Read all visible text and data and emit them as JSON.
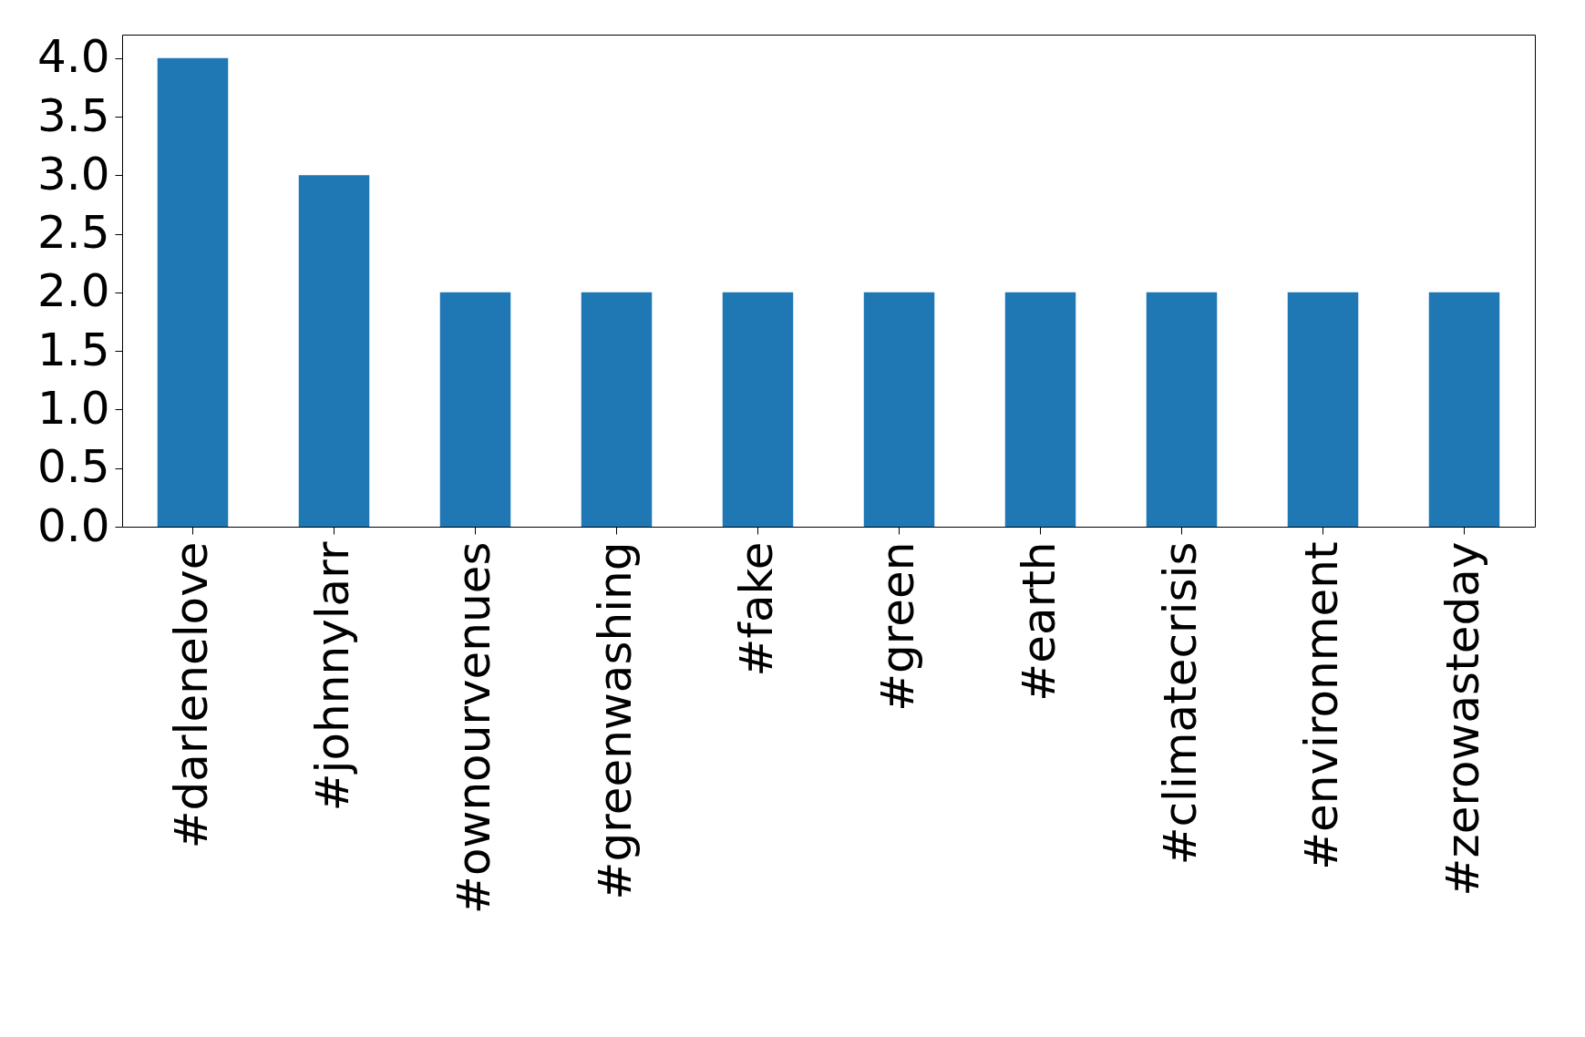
{
  "chart_data": {
    "type": "bar",
    "categories": [
      "#darlenelove",
      "#johnnylarr",
      "#ownourvenues",
      "#greenwashing",
      "#fake",
      "#green",
      "#earth",
      "#climatecrisis",
      "#environment",
      "#zerowasteday"
    ],
    "values": [
      4,
      3,
      2,
      2,
      2,
      2,
      2,
      2,
      2,
      2
    ],
    "color": "#1f77b4",
    "ylim": [
      0,
      4.2
    ],
    "yticks": [
      {
        "value": 0,
        "label": "0.0"
      },
      {
        "value": 0.5,
        "label": "0.5"
      },
      {
        "value": 1,
        "label": "1.0"
      },
      {
        "value": 1.5,
        "label": "1.5"
      },
      {
        "value": 2,
        "label": "2.0"
      },
      {
        "value": 2.5,
        "label": "2.5"
      },
      {
        "value": 3,
        "label": "3.0"
      },
      {
        "value": 3.5,
        "label": "3.5"
      },
      {
        "value": 4,
        "label": "4.0"
      }
    ],
    "grid": false
  }
}
